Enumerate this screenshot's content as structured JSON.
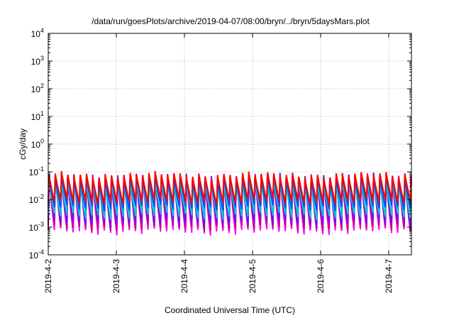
{
  "chart_data": {
    "type": "line",
    "title": "/data/run/goesPlots/archive/2019-04-07/08:00/bryn/../bryn/5daysMars.plot",
    "xlabel": "Coordinated Universal Time (UTC)",
    "ylabel": "cGy/day",
    "yscale": "log",
    "ylim": [
      0.0001,
      10000
    ],
    "y_ticks": [
      {
        "base": "10",
        "exp": "-4",
        "value": 0.0001
      },
      {
        "base": "10",
        "exp": "-3",
        "value": 0.001
      },
      {
        "base": "10",
        "exp": "-2",
        "value": 0.01
      },
      {
        "base": "10",
        "exp": "-1",
        "value": 0.1
      },
      {
        "base": "10",
        "exp": "0",
        "value": 1
      },
      {
        "base": "10",
        "exp": "1",
        "value": 10
      },
      {
        "base": "10",
        "exp": "2",
        "value": 100
      },
      {
        "base": "10",
        "exp": "3",
        "value": 1000
      },
      {
        "base": "10",
        "exp": "4",
        "value": 10000
      }
    ],
    "xlim": [
      "2019-04-02 00:00",
      "2019-04-07 08:00"
    ],
    "x_ticks": [
      "2019-4-2",
      "2019-4-3",
      "2019-4-4",
      "2019-4-5",
      "2019-4-6",
      "2019-4-7"
    ],
    "grid": true,
    "legend": "none",
    "sawtooth_period_hours": 2.2,
    "series": [
      {
        "color": "#ff00ff",
        "peak": 0.075,
        "trough": 0.0008
      },
      {
        "color": "#c8007a",
        "peak": 0.08,
        "trough": 0.0011
      },
      {
        "color": "#8000ff",
        "peak": 0.085,
        "trough": 0.0016
      },
      {
        "color": "#00c8c8",
        "peak": 0.05,
        "trough": 0.003
      },
      {
        "color": "#0050ff",
        "peak": 0.075,
        "trough": 0.006
      },
      {
        "color": "#ff0000",
        "peak": 0.095,
        "trough": 0.01
      }
    ]
  }
}
